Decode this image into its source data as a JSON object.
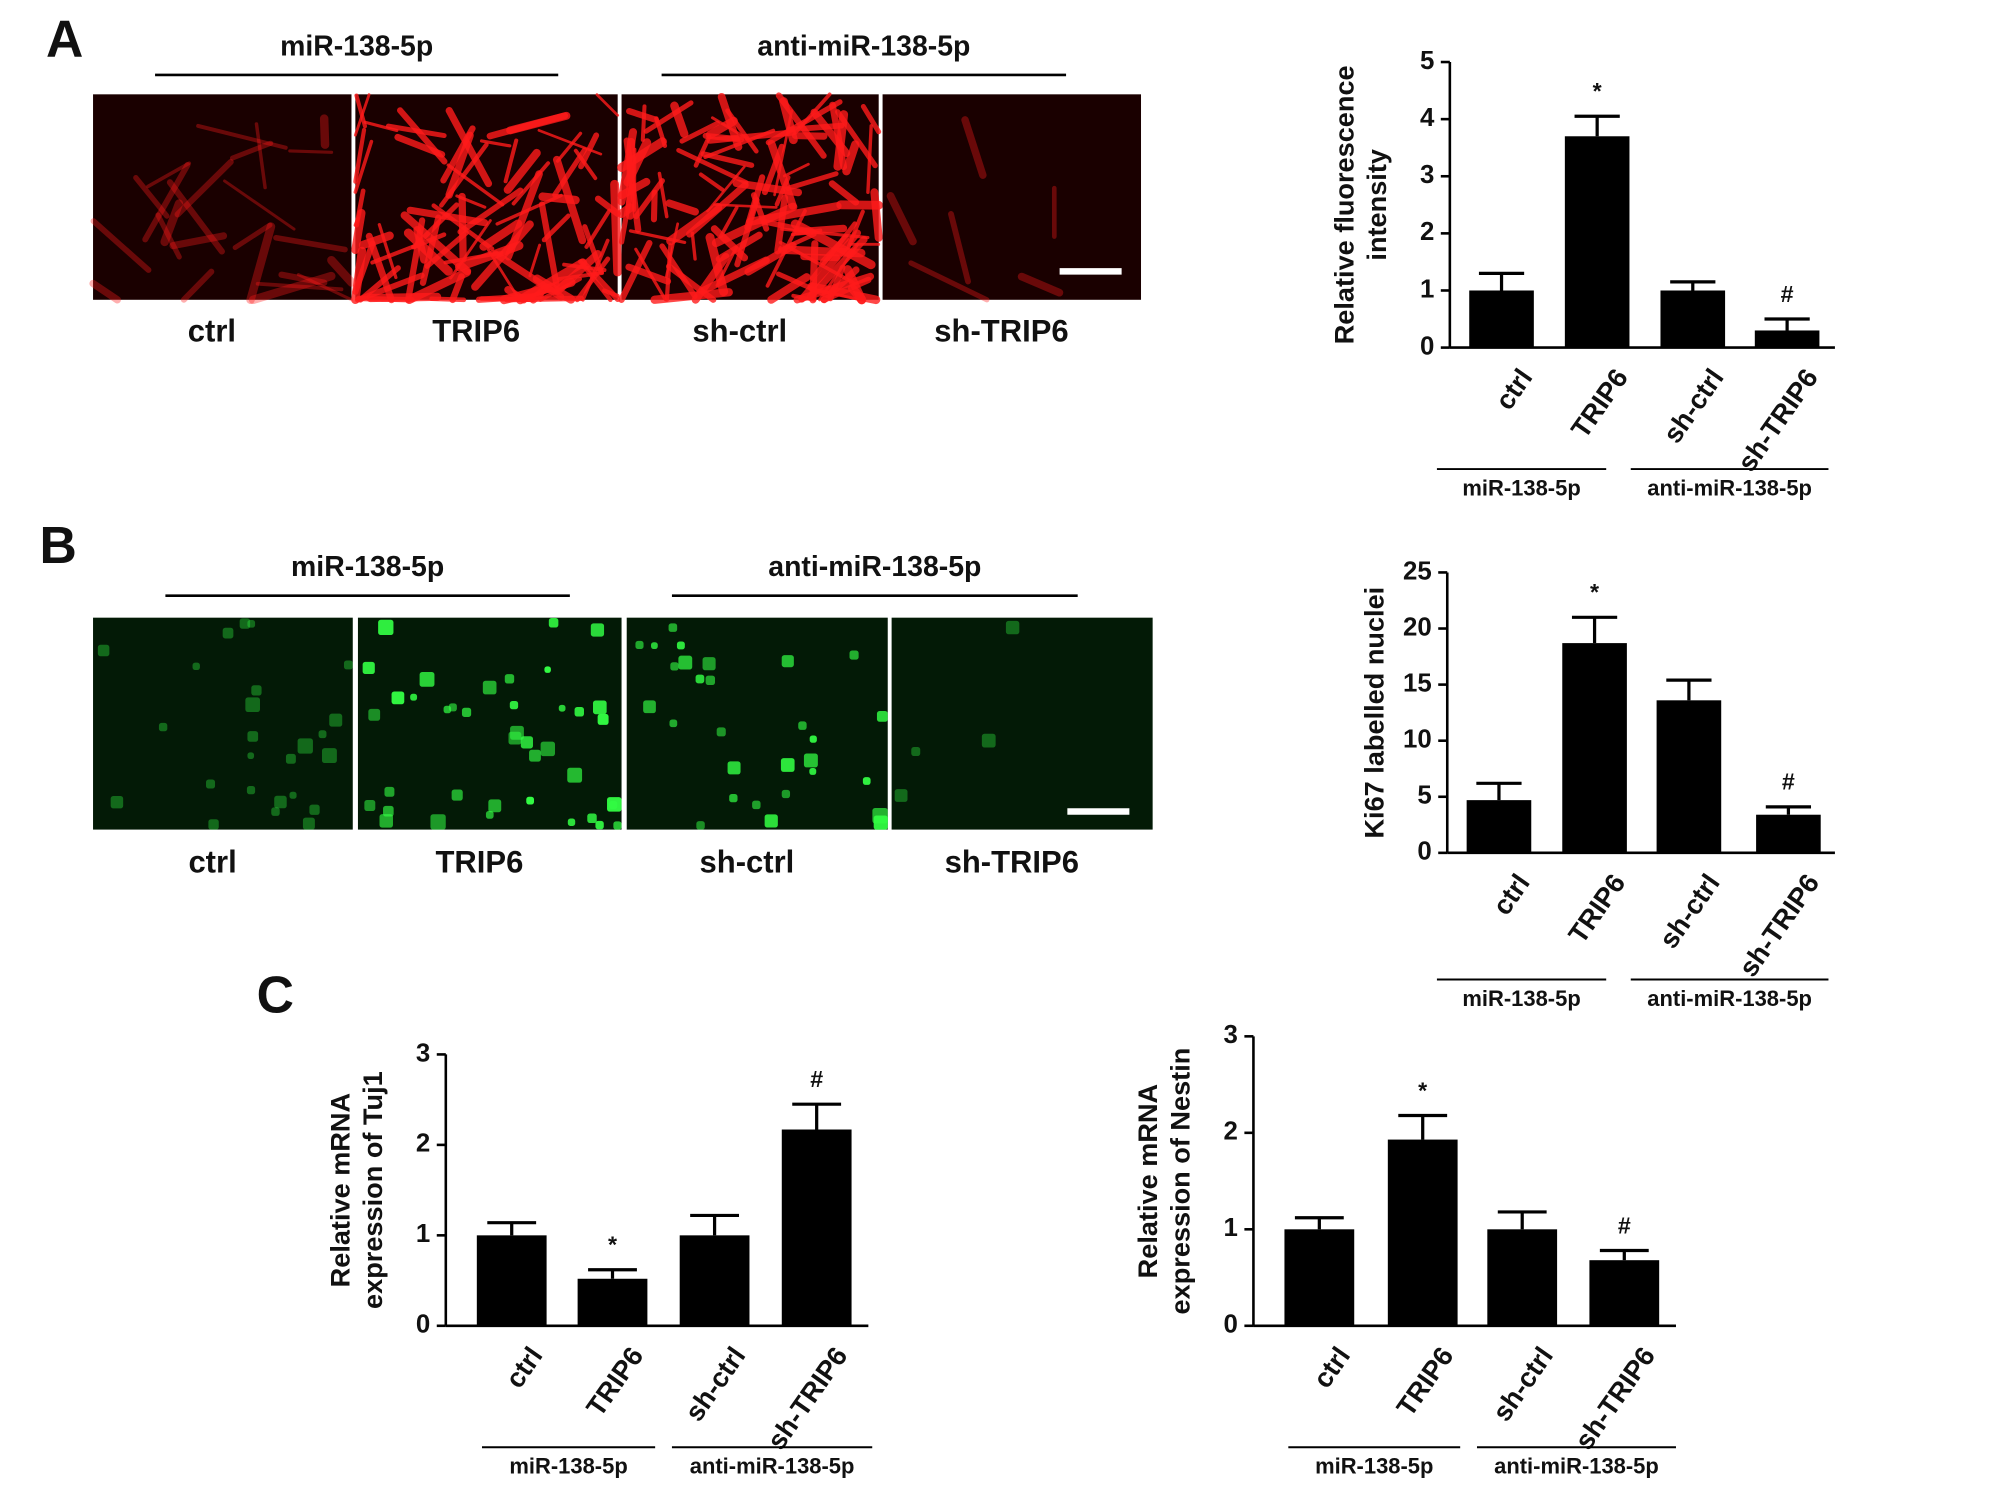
{
  "panels": [
    {
      "label": "A",
      "groups": [
        "miR-138-5p",
        "anti-miR-138-5p"
      ],
      "images": [
        "ctrl",
        "TRIP6",
        "sh-ctrl",
        "sh-TRIP6"
      ]
    },
    {
      "label": "B",
      "groups": [
        "miR-138-5p",
        "anti-miR-138-5p"
      ],
      "images": [
        "ctrl",
        "TRIP6",
        "sh-ctrl",
        "sh-TRIP6"
      ]
    },
    {
      "label": "C"
    }
  ],
  "chart_data": [
    {
      "type": "bar",
      "ylabel": [
        "Relative fluorescence",
        "intensity"
      ],
      "categories": [
        "ctrl",
        "TRIP6",
        "sh-ctrl",
        "sh-TRIP6"
      ],
      "groups": [
        "miR-138-5p",
        "anti-miR-138-5p"
      ],
      "values": [
        1.0,
        3.7,
        1.0,
        0.3
      ],
      "errors": [
        0.3,
        0.35,
        0.15,
        0.2
      ],
      "bar_labels": [
        null,
        "*",
        null,
        "#"
      ],
      "color": "#000000",
      "ylim": [
        0,
        5
      ],
      "yticks": [
        0,
        1,
        2,
        3,
        4,
        5
      ]
    },
    {
      "type": "bar",
      "ylabel": [
        "Ki67 labelled nuclei"
      ],
      "categories": [
        "ctrl",
        "TRIP6",
        "sh-ctrl",
        "sh-TRIP6"
      ],
      "groups": [
        "miR-138-5p",
        "anti-miR-138-5p"
      ],
      "values": [
        4.7,
        18.7,
        13.6,
        3.4
      ],
      "errors": [
        1.5,
        2.3,
        1.8,
        0.7
      ],
      "bar_labels": [
        null,
        "*",
        null,
        "#"
      ],
      "color": "#000000",
      "ylim": [
        0,
        25
      ],
      "yticks": [
        0,
        5,
        10,
        15,
        20,
        25
      ]
    },
    {
      "type": "bar",
      "ylabel": [
        "Relative mRNA",
        "expression of Tuj1"
      ],
      "categories": [
        "ctrl",
        "TRIP6",
        "sh-ctrl",
        "sh-TRIP6"
      ],
      "groups": [
        "miR-138-5p",
        "anti-miR-138-5p"
      ],
      "values": [
        1.0,
        0.52,
        1.0,
        2.17
      ],
      "errors": [
        0.14,
        0.1,
        0.22,
        0.28
      ],
      "bar_labels": [
        null,
        "*",
        null,
        "#"
      ],
      "color": "#000000",
      "ylim": [
        0,
        3
      ],
      "yticks": [
        0,
        1,
        2,
        3
      ]
    },
    {
      "type": "bar",
      "ylabel": [
        "Relative mRNA",
        "expression of Nestin"
      ],
      "categories": [
        "ctrl",
        "TRIP6",
        "sh-ctrl",
        "sh-TRIP6"
      ],
      "groups": [
        "miR-138-5p",
        "anti-miR-138-5p"
      ],
      "values": [
        1.0,
        1.93,
        1.0,
        0.68
      ],
      "errors": [
        0.12,
        0.25,
        0.18,
        0.1
      ],
      "bar_labels": [
        null,
        "*",
        null,
        "#"
      ],
      "color": "#000000",
      "ylim": [
        0,
        3
      ],
      "yticks": [
        0,
        1,
        2,
        3
      ]
    }
  ]
}
